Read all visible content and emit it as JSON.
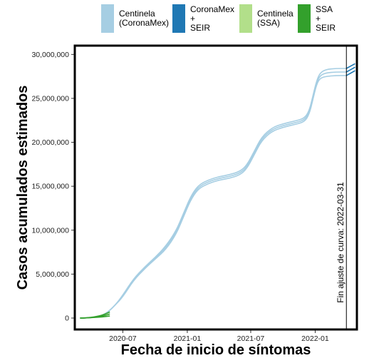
{
  "chart_data": {
    "type": "line",
    "title": "",
    "xlabel": "Fecha de inicio de síntomas",
    "ylabel": "Casos acumulados estimados",
    "x_type": "date",
    "xlim": [
      "2020-02-15",
      "2022-04-30"
    ],
    "ylim": [
      -1300000,
      31000000
    ],
    "x_ticks": [
      "2020-07-01",
      "2021-01-01",
      "2021-07-01",
      "2022-01-01"
    ],
    "x_tick_labels": [
      "2020-07",
      "2021-01",
      "2021-07",
      "2022-01"
    ],
    "y_ticks": [
      0,
      5000000,
      10000000,
      15000000,
      20000000,
      25000000,
      30000000
    ],
    "y_tick_labels": [
      "0",
      "5,000,000",
      "10,000,000",
      "15,000,000",
      "20,000,000",
      "25,000,000",
      "30,000,000"
    ],
    "grid": false,
    "legend_position": "top",
    "legend": [
      {
        "label_lines": [
          "Centinela",
          "(CoronaMex)"
        ],
        "color": "#a6cee3"
      },
      {
        "label_lines": [
          "CoronaMex",
          "+",
          "SEIR"
        ],
        "color": "#1f78b4"
      },
      {
        "label_lines": [
          "Centinela",
          "(SSA)"
        ],
        "color": "#b2df8a"
      },
      {
        "label_lines": [
          "SSA",
          "+",
          "SEIR"
        ],
        "color": "#33a02c"
      }
    ],
    "annotations": [
      {
        "type": "vline",
        "x": "2022-03-31",
        "text": "Fin ajuste de curva: 2022-03-31"
      }
    ],
    "series": [
      {
        "legend_index": 0,
        "color": "#a6cee3",
        "x": [
          "2020-03-01",
          "2020-03-20",
          "2020-04-10",
          "2020-05-01",
          "2020-05-20",
          "2020-06-10",
          "2020-07-01",
          "2020-08-01",
          "2020-09-01",
          "2020-10-01",
          "2020-11-01",
          "2020-12-01",
          "2020-12-20",
          "2021-01-10",
          "2021-02-01",
          "2021-03-01",
          "2021-04-01",
          "2021-05-01",
          "2021-06-01",
          "2021-06-20",
          "2021-07-10",
          "2021-08-01",
          "2021-09-01",
          "2021-10-01",
          "2021-11-01",
          "2021-12-01",
          "2021-12-15",
          "2021-12-25",
          "2022-01-05",
          "2022-01-15",
          "2022-02-01",
          "2022-03-01",
          "2022-03-31"
        ],
        "bands": [
          [
            0,
            20000,
            80000,
            250000,
            700000,
            1500000,
            2600000,
            4500000,
            5800000,
            6900000,
            8200000,
            10000000,
            11800000,
            13800000,
            15100000,
            15700000,
            16100000,
            16300000,
            16700000,
            17400000,
            18900000,
            20600000,
            21700000,
            22100000,
            22400000,
            22700000,
            23600000,
            25200000,
            27000000,
            27900000,
            28300000,
            28400000,
            28400000
          ],
          [
            0,
            20000,
            80000,
            250000,
            700000,
            1500000,
            2500000,
            4400000,
            5700000,
            6800000,
            8000000,
            9800000,
            11600000,
            13600000,
            14900000,
            15500000,
            15900000,
            16100000,
            16500000,
            17200000,
            18700000,
            20400000,
            21500000,
            21900000,
            22200000,
            22500000,
            23400000,
            25000000,
            26800000,
            27600000,
            27900000,
            28000000,
            28000000
          ],
          [
            0,
            20000,
            80000,
            250000,
            700000,
            1500000,
            2400000,
            4300000,
            5600000,
            6700000,
            7800000,
            9600000,
            11400000,
            13400000,
            14700000,
            15300000,
            15700000,
            15900000,
            16300000,
            17000000,
            18500000,
            20200000,
            21300000,
            21700000,
            22000000,
            22300000,
            23200000,
            24800000,
            26600000,
            27300000,
            27500000,
            27600000,
            27600000
          ]
        ]
      },
      {
        "legend_index": 1,
        "color": "#1f78b4",
        "x": [
          "2022-03-31",
          "2022-04-25"
        ],
        "bands": [
          [
            28400000,
            28950000
          ],
          [
            28000000,
            28550000
          ],
          [
            27600000,
            28150000
          ]
        ]
      },
      {
        "legend_index": 3,
        "color": "#33a02c",
        "x": [
          "2020-03-01",
          "2020-03-20",
          "2020-04-10",
          "2020-04-25",
          "2020-05-10",
          "2020-05-25"
        ],
        "bands": [
          [
            0,
            25000,
            120000,
            250000,
            420000,
            700000
          ],
          [
            0,
            20000,
            90000,
            170000,
            280000,
            470000
          ],
          [
            0,
            15000,
            60000,
            100000,
            160000,
            230000
          ]
        ]
      }
    ]
  }
}
